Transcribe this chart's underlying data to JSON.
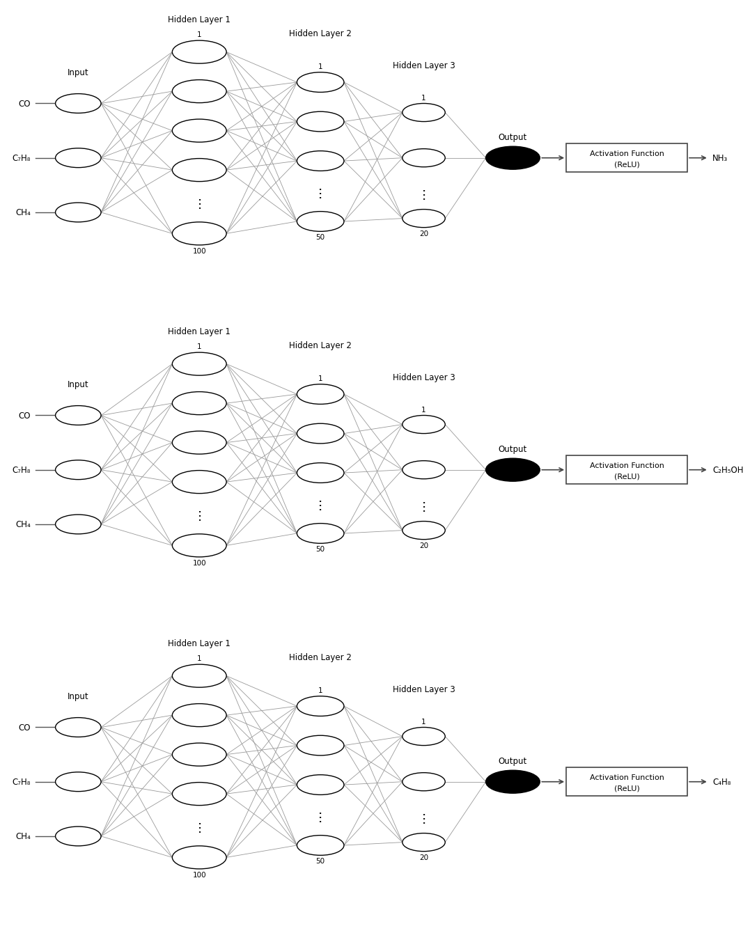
{
  "background_color": "#ffffff",
  "output_labels": [
    "NH₃",
    "C₂H₅OH",
    "C₄H₈"
  ],
  "input_labels": [
    "CO",
    "C₇H₈",
    "CH₄"
  ],
  "input_label": "Input",
  "hl1_label": "Hidden Layer 1",
  "hl2_label": "Hidden Layer 2",
  "hl3_label": "Hidden Layer 3",
  "output_label": "Output",
  "activation_text_1": "Activation Function",
  "activation_text_2": "(ReLU)",
  "font_size": 8.5,
  "line_color": "#999999",
  "node_color": "#ffffff",
  "node_edge_color": "#000000",
  "output_node_color": "#000000"
}
